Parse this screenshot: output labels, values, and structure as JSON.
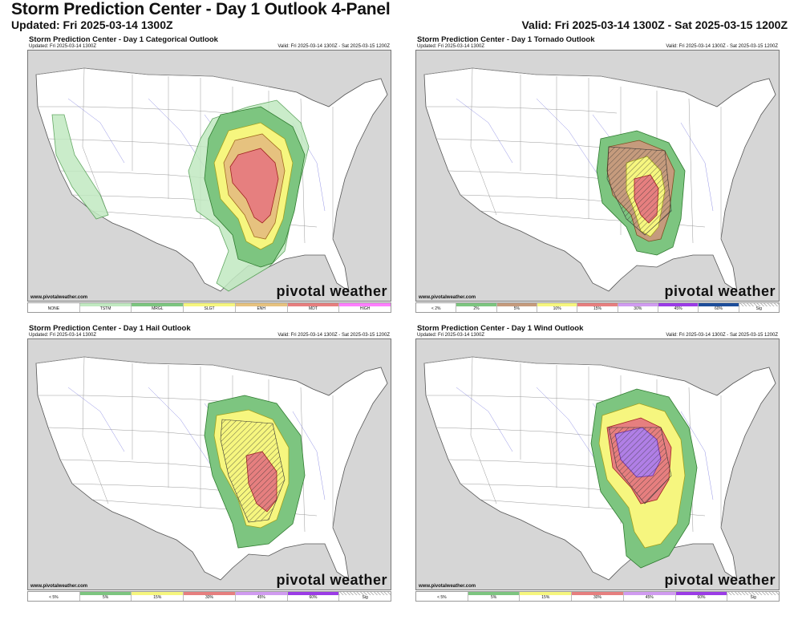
{
  "header": {
    "title": "Storm Prediction Center - Day 1 Outlook 4-Panel",
    "updated": "Updated: Fri 2025-03-14 1300Z",
    "valid": "Valid: Fri 2025-03-14 1300Z - Sat 2025-03-15 1200Z"
  },
  "panels": [
    {
      "title": "Storm Prediction Center - Day 1 Categorical Outlook",
      "updated": "Updated: Fri 2025-03-14 1300Z",
      "valid": "Valid: Fri 2025-03-14 1300Z - Sat 2025-03-15 1200Z",
      "site": "www.pivotalweather.com",
      "brand": "pivotal weather",
      "legend": [
        {
          "label": "NONE",
          "color": "#ffffff"
        },
        {
          "label": "TSTM",
          "color": "#c1e9c1"
        },
        {
          "label": "MRGL",
          "color": "#7dc580"
        },
        {
          "label": "SLGT",
          "color": "#f6f67f"
        },
        {
          "label": "ENH",
          "color": "#e6c27f"
        },
        {
          "label": "MDT",
          "color": "#e67f7f"
        },
        {
          "label": "HIGH",
          "color": "#ff7fff"
        }
      ]
    },
    {
      "title": "Storm Prediction Center - Day 1 Tornado Outlook",
      "updated": "Updated: Fri 2025-03-14 1300Z",
      "valid": "Valid: Fri 2025-03-14 1300Z - Sat 2025-03-15 1200Z",
      "site": "www.pivotalweather.com",
      "brand": "pivotal weather",
      "legend": [
        {
          "label": "< 2%",
          "color": "#ffffff"
        },
        {
          "label": "2%",
          "color": "#7dc580"
        },
        {
          "label": "5%",
          "color": "#c59b7d"
        },
        {
          "label": "10%",
          "color": "#f6f67f"
        },
        {
          "label": "15%",
          "color": "#e67f7f"
        },
        {
          "label": "30%",
          "color": "#d09bf0"
        },
        {
          "label": "45%",
          "color": "#9b3ce6"
        },
        {
          "label": "60%",
          "color": "#1e4e9b"
        },
        {
          "label": "Sig",
          "color": "hatch"
        }
      ]
    },
    {
      "title": "Storm Prediction Center - Day 1 Hail Outlook",
      "updated": "Updated: Fri 2025-03-14 1300Z",
      "valid": "Valid: Fri 2025-03-14 1300Z - Sat 2025-03-15 1200Z",
      "site": "www.pivotalweather.com",
      "brand": "pivotal weather",
      "legend": [
        {
          "label": "< 5%",
          "color": "#ffffff"
        },
        {
          "label": "5%",
          "color": "#7dc580"
        },
        {
          "label": "15%",
          "color": "#f6f67f"
        },
        {
          "label": "30%",
          "color": "#e67f7f"
        },
        {
          "label": "45%",
          "color": "#d09bf0"
        },
        {
          "label": "60%",
          "color": "#9b3ce6"
        },
        {
          "label": "Sig",
          "color": "hatch"
        }
      ]
    },
    {
      "title": "Storm Prediction Center - Day 1 Wind Outlook",
      "updated": "Updated: Fri 2025-03-14 1300Z",
      "valid": "Valid: Fri 2025-03-14 1300Z - Sat 2025-03-15 1200Z",
      "site": "www.pivotalweather.com",
      "brand": "pivotal weather",
      "legend": [
        {
          "label": "< 5%",
          "color": "#ffffff"
        },
        {
          "label": "5%",
          "color": "#7dc580"
        },
        {
          "label": "15%",
          "color": "#f6f67f"
        },
        {
          "label": "30%",
          "color": "#e67f7f"
        },
        {
          "label": "45%",
          "color": "#d09bf0"
        },
        {
          "label": "60%",
          "color": "#9b3ce6"
        },
        {
          "label": "Sig",
          "color": "hatch"
        }
      ]
    }
  ]
}
